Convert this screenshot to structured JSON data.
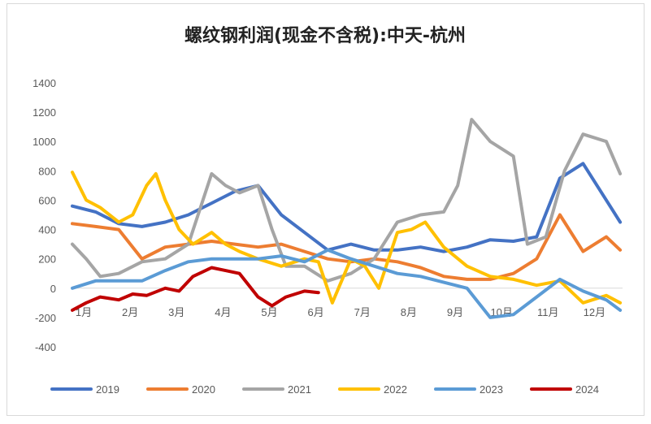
{
  "chart_data": {
    "type": "line",
    "title": "螺纹钢利润(现金不含税):中天-杭州",
    "xlabel": "",
    "ylabel": "",
    "ylim": [
      -400,
      1400
    ],
    "yticks": [
      "1400",
      "1200",
      "1000",
      "800",
      "600",
      "400",
      "200",
      "0",
      "-200",
      "-400"
    ],
    "categories": [
      "1月",
      "2月",
      "3月",
      "4月",
      "5月",
      "6月",
      "7月",
      "8月",
      "9月",
      "10月",
      "11月",
      "12月"
    ],
    "legend_position": "bottom",
    "grid": false,
    "series": [
      {
        "name": "2019",
        "color": "#4472C4",
        "width": 4,
        "x": [
          1,
          1.5,
          2,
          2.5,
          3,
          3.5,
          4,
          4.5,
          5,
          5.5,
          6,
          6.5,
          7,
          7.5,
          8,
          8.5,
          9,
          9.5,
          10,
          10.5,
          11,
          11.5,
          12,
          12.5,
          12.8
        ],
        "values": [
          560,
          520,
          440,
          420,
          450,
          500,
          580,
          660,
          700,
          500,
          380,
          260,
          300,
          260,
          260,
          280,
          250,
          280,
          330,
          320,
          350,
          750,
          850,
          600,
          450
        ]
      },
      {
        "name": "2020",
        "color": "#ED7D31",
        "width": 4,
        "x": [
          1,
          1.5,
          2,
          2.5,
          3,
          3.5,
          4,
          4.5,
          5,
          5.5,
          6,
          6.5,
          7,
          7.5,
          8,
          8.5,
          9,
          9.5,
          10,
          10.5,
          11,
          11.5,
          12,
          12.5,
          12.8
        ],
        "values": [
          440,
          420,
          400,
          200,
          280,
          300,
          320,
          300,
          280,
          300,
          250,
          200,
          180,
          200,
          180,
          140,
          80,
          60,
          60,
          100,
          200,
          500,
          250,
          350,
          260
        ]
      },
      {
        "name": "2021",
        "color": "#A5A5A5",
        "width": 4,
        "x": [
          1,
          1.3,
          1.6,
          2,
          2.5,
          3,
          3.5,
          4,
          4.3,
          4.6,
          5,
          5.3,
          5.6,
          6,
          6.5,
          7,
          7.5,
          8,
          8.5,
          9,
          9.3,
          9.6,
          10,
          10.5,
          10.8,
          11.2,
          11.6,
          12,
          12.5,
          12.8
        ],
        "values": [
          300,
          200,
          80,
          100,
          180,
          200,
          300,
          780,
          700,
          650,
          700,
          400,
          150,
          150,
          50,
          100,
          200,
          450,
          500,
          520,
          700,
          1150,
          1000,
          900,
          300,
          350,
          800,
          1050,
          1000,
          780
        ]
      },
      {
        "name": "2022",
        "color": "#FFC000",
        "width": 4,
        "x": [
          1,
          1.3,
          1.6,
          2,
          2.3,
          2.6,
          2.8,
          3,
          3.3,
          3.6,
          4,
          4.3,
          4.6,
          5,
          5.5,
          6,
          6.3,
          6.6,
          7,
          7.3,
          7.6,
          8,
          8.3,
          8.6,
          9,
          9.5,
          10,
          10.5,
          11,
          11.5,
          12,
          12.5,
          12.8
        ],
        "values": [
          790,
          600,
          550,
          450,
          500,
          700,
          780,
          600,
          400,
          300,
          380,
          300,
          250,
          200,
          150,
          200,
          180,
          -100,
          200,
          150,
          0,
          380,
          400,
          450,
          280,
          150,
          80,
          60,
          20,
          50,
          -100,
          -50,
          -100
        ]
      },
      {
        "name": "2023",
        "color": "#5B9BD5",
        "width": 4,
        "x": [
          1,
          1.5,
          2,
          2.5,
          3,
          3.5,
          4,
          4.5,
          5,
          5.5,
          6,
          6.5,
          7,
          7.5,
          8,
          8.5,
          9,
          9.5,
          10,
          10.5,
          11,
          11.5,
          12,
          12.5,
          12.8
        ],
        "values": [
          0,
          50,
          50,
          50,
          120,
          180,
          200,
          200,
          200,
          220,
          180,
          260,
          200,
          150,
          100,
          80,
          40,
          0,
          -200,
          -180,
          -60,
          60,
          -20,
          -80,
          -150
        ]
      },
      {
        "name": "2024",
        "color": "#C00000",
        "width": 4,
        "x": [
          1,
          1.3,
          1.6,
          2,
          2.3,
          2.6,
          3,
          3.3,
          3.6,
          4,
          4.3,
          4.6,
          5,
          5.3,
          5.6,
          6,
          6.3
        ],
        "values": [
          -150,
          -100,
          -60,
          -80,
          -40,
          -50,
          0,
          -20,
          80,
          140,
          120,
          100,
          -60,
          -120,
          -60,
          -20,
          -30
        ]
      }
    ]
  }
}
